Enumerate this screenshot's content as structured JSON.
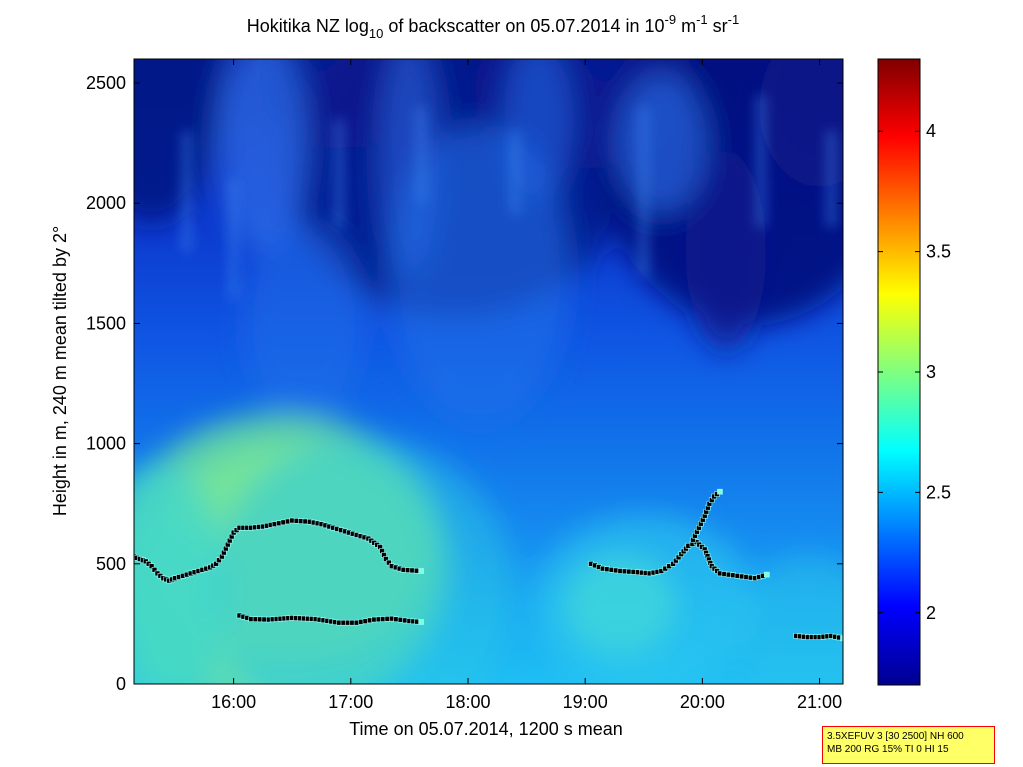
{
  "chart_data": {
    "type": "heatmap",
    "title": {
      "prefix": "Hokitika NZ log",
      "prefix_sub": "10",
      "middle": " of backscatter on 05.07.2014 in 10",
      "exp1": "-9",
      "unit1": " m",
      "exp2": "-1",
      "unit2": " sr",
      "exp3": "-1"
    },
    "xlabel": "Time on 05.07.2014, 1200 s mean",
    "ylabel": "Height in m, 240 m mean tilted by 2°",
    "xlim": [
      15.15,
      21.2
    ],
    "ylim": [
      0,
      2600
    ],
    "x_ticks": [
      {
        "value": 16,
        "label": "16:00"
      },
      {
        "value": 17,
        "label": "17:00"
      },
      {
        "value": 18,
        "label": "18:00"
      },
      {
        "value": 19,
        "label": "19:00"
      },
      {
        "value": 20,
        "label": "20:00"
      },
      {
        "value": 21,
        "label": "21:00"
      }
    ],
    "y_ticks": [
      {
        "value": 0,
        "label": "0"
      },
      {
        "value": 500,
        "label": "500"
      },
      {
        "value": 1000,
        "label": "1000"
      },
      {
        "value": 1500,
        "label": "1500"
      },
      {
        "value": 2000,
        "label": "2000"
      },
      {
        "value": 2500,
        "label": "2500"
      }
    ],
    "colorbar": {
      "range": [
        1.7,
        4.3
      ],
      "colormap": "jet",
      "ticks": [
        {
          "value": 2,
          "label": "2"
        },
        {
          "value": 2.5,
          "label": "2.5"
        },
        {
          "value": 3,
          "label": "3"
        },
        {
          "value": 3.5,
          "label": "3.5"
        },
        {
          "value": 4,
          "label": "4"
        }
      ]
    },
    "layer_series": [
      {
        "points": [
          [
            15.15,
            530
          ],
          [
            15.2,
            520
          ],
          [
            15.25,
            510
          ],
          [
            15.3,
            490
          ],
          [
            15.35,
            460
          ],
          [
            15.4,
            440
          ],
          [
            15.45,
            430
          ],
          [
            15.5,
            440
          ],
          [
            15.6,
            455
          ],
          [
            15.7,
            470
          ],
          [
            15.8,
            485
          ],
          [
            15.85,
            500
          ],
          [
            15.9,
            530
          ],
          [
            15.95,
            580
          ],
          [
            16.0,
            630
          ],
          [
            16.05,
            650
          ],
          [
            16.15,
            650
          ],
          [
            16.25,
            655
          ],
          [
            16.35,
            665
          ],
          [
            16.5,
            680
          ],
          [
            16.65,
            675
          ],
          [
            16.75,
            665
          ],
          [
            16.85,
            650
          ],
          [
            16.95,
            635
          ],
          [
            17.05,
            620
          ],
          [
            17.15,
            605
          ],
          [
            17.25,
            570
          ],
          [
            17.3,
            520
          ],
          [
            17.35,
            490
          ],
          [
            17.45,
            475
          ],
          [
            17.6,
            470
          ]
        ]
      },
      {
        "points": [
          [
            16.05,
            285
          ],
          [
            16.15,
            270
          ],
          [
            16.3,
            268
          ],
          [
            16.5,
            275
          ],
          [
            16.7,
            270
          ],
          [
            16.9,
            255
          ],
          [
            17.05,
            255
          ],
          [
            17.2,
            268
          ],
          [
            17.35,
            272
          ],
          [
            17.5,
            262
          ],
          [
            17.6,
            258
          ]
        ]
      },
      {
        "points": [
          [
            19.05,
            500
          ],
          [
            19.15,
            480
          ],
          [
            19.3,
            470
          ],
          [
            19.45,
            465
          ],
          [
            19.55,
            460
          ],
          [
            19.65,
            470
          ],
          [
            19.75,
            500
          ],
          [
            19.82,
            540
          ],
          [
            19.88,
            575
          ],
          [
            19.95,
            590
          ],
          [
            20.02,
            560
          ],
          [
            20.08,
            490
          ],
          [
            20.15,
            460
          ],
          [
            20.3,
            450
          ],
          [
            20.45,
            440
          ],
          [
            20.55,
            455
          ]
        ]
      },
      {
        "points": [
          [
            19.92,
            600
          ],
          [
            19.97,
            650
          ],
          [
            20.02,
            700
          ],
          [
            20.06,
            750
          ],
          [
            20.1,
            780
          ],
          [
            20.15,
            800
          ]
        ]
      },
      {
        "points": [
          [
            20.8,
            200
          ],
          [
            20.9,
            195
          ],
          [
            21.0,
            195
          ],
          [
            21.1,
            200
          ],
          [
            21.2,
            190
          ]
        ]
      }
    ]
  },
  "info_box": {
    "line1": "3.5XEFUV 3 [30 2500] NH 600",
    "line2": "MB 200 RG 15% TI 0 HI 15"
  }
}
